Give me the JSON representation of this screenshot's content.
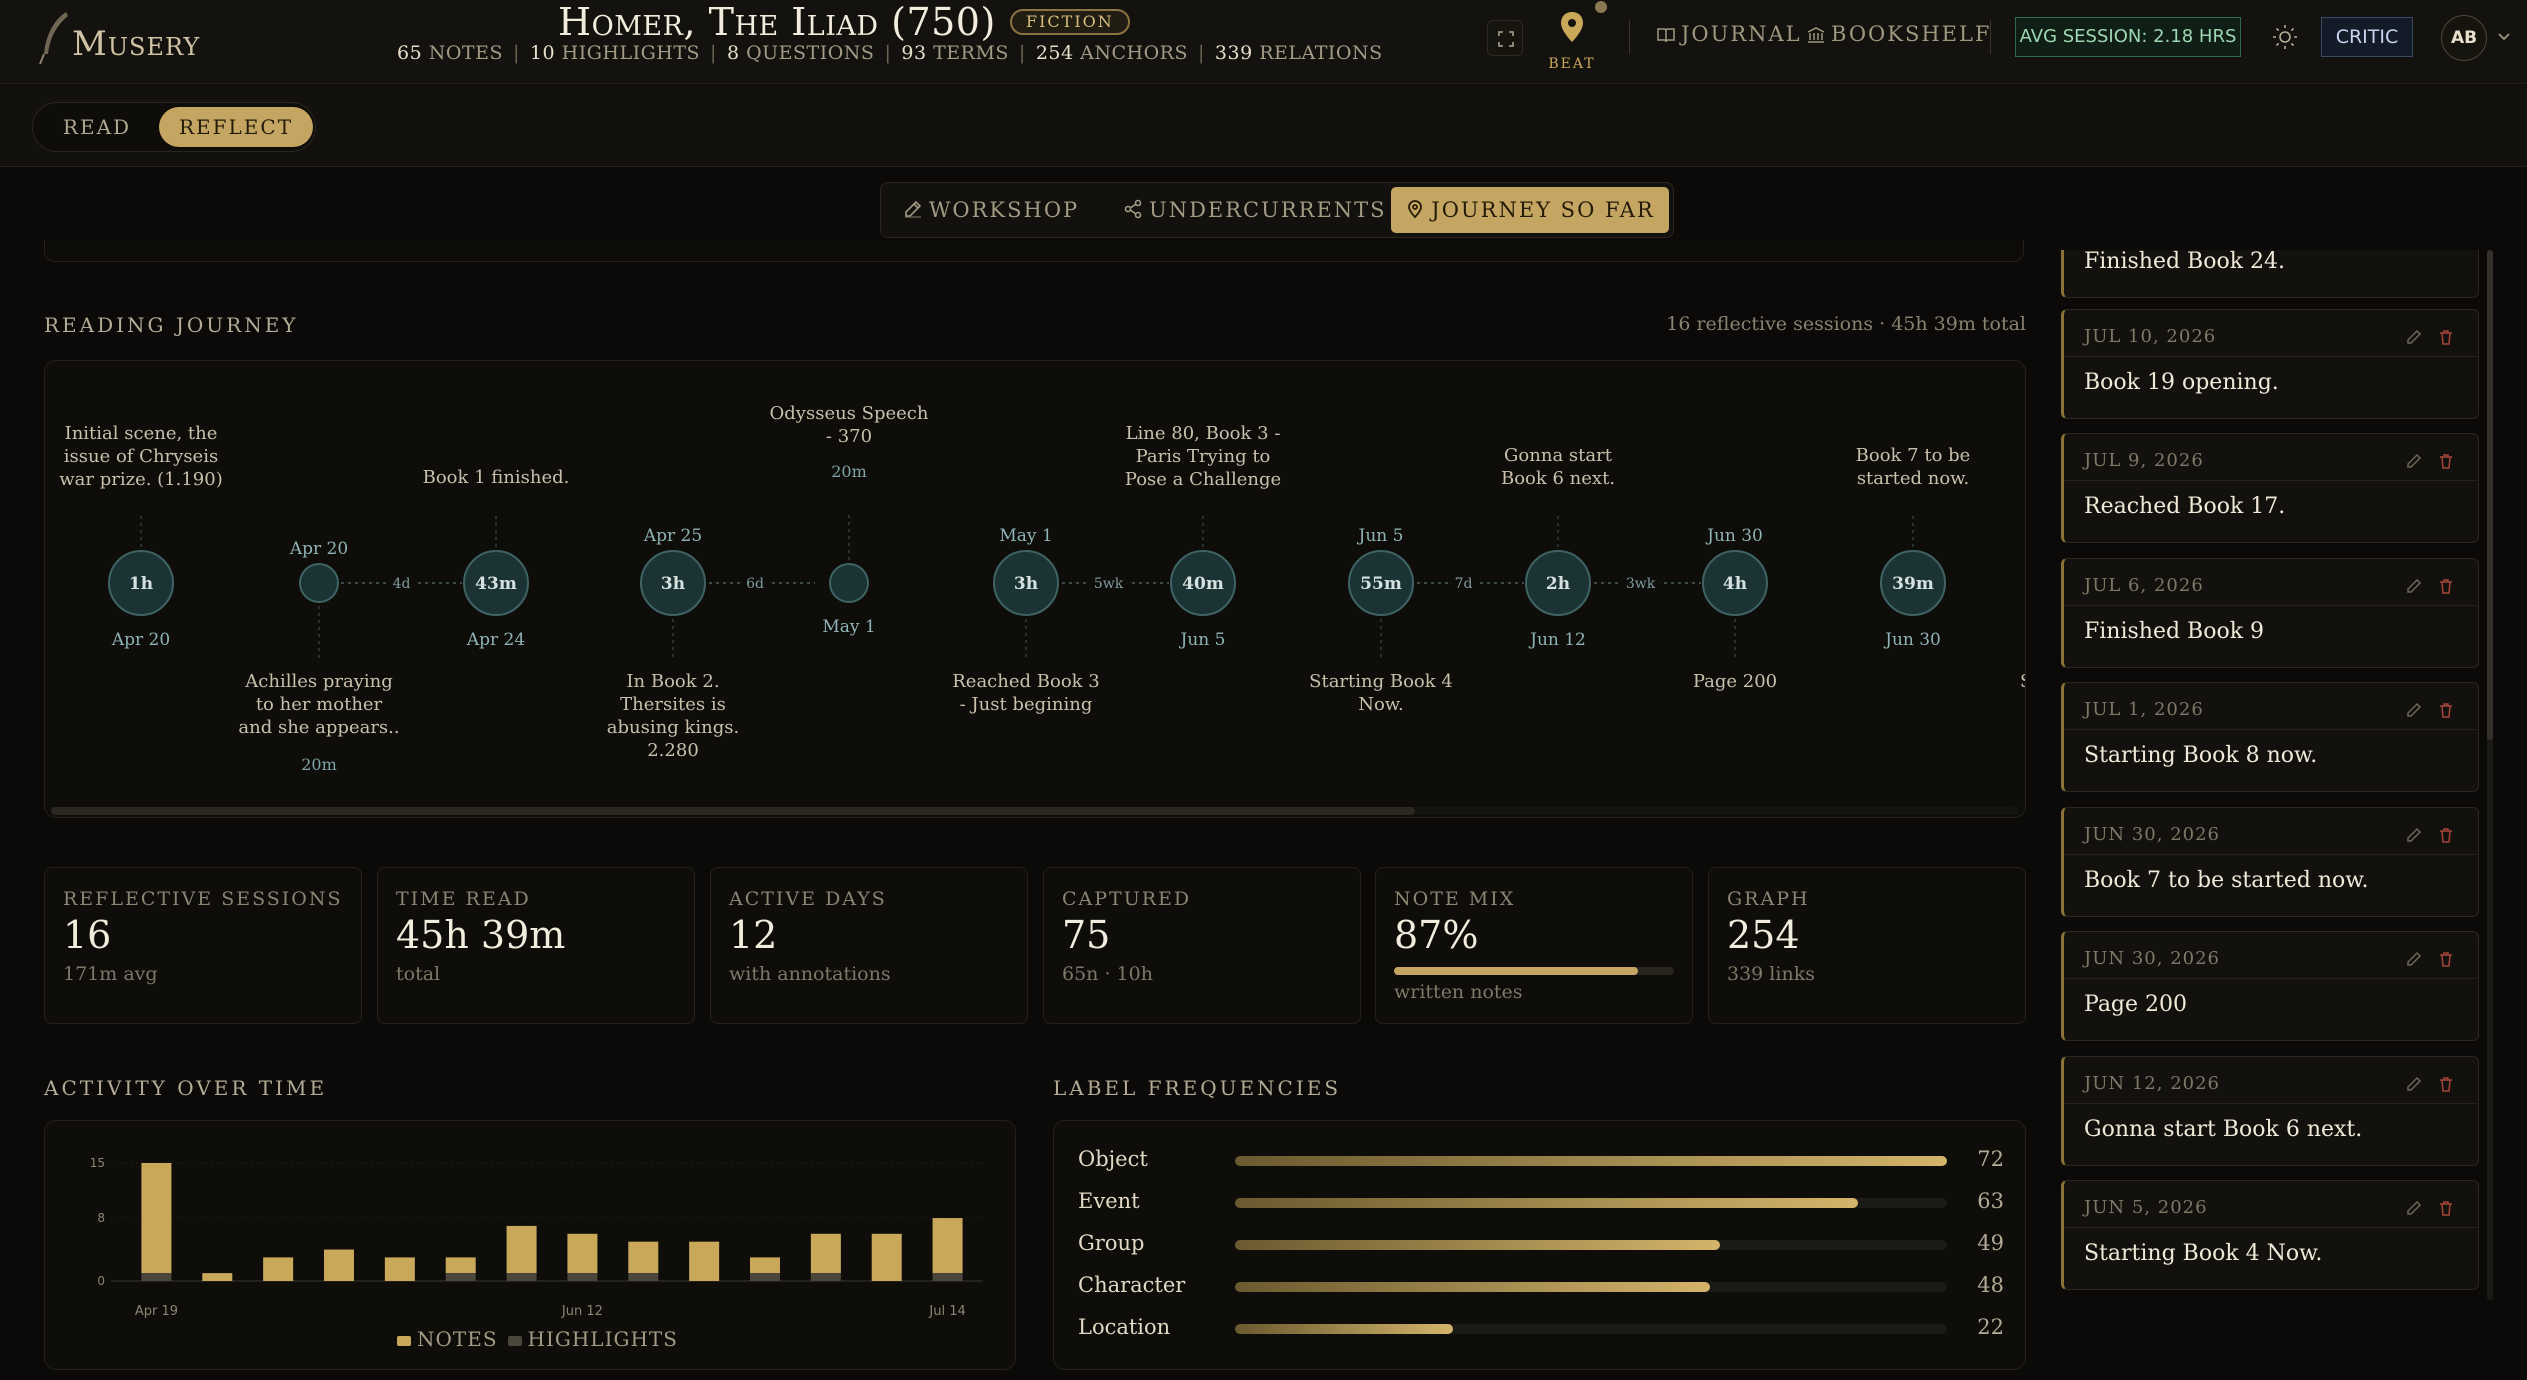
{
  "app": {
    "logo_text": "Musery"
  },
  "book": {
    "title": "Homer, The Iliad (750)",
    "genre": "FICTION",
    "stats": [
      {
        "count": "65",
        "label": "NOTES"
      },
      {
        "count": "10",
        "label": "HIGHLIGHTS"
      },
      {
        "count": "8",
        "label": "QUESTIONS"
      },
      {
        "count": "93",
        "label": "TERMS"
      },
      {
        "count": "254",
        "label": "ANCHORS"
      },
      {
        "count": "339",
        "label": "RELATIONS"
      }
    ]
  },
  "header": {
    "beat_label": "BEAT",
    "journal_label": "JOURNAL",
    "bookshelf_label": "BOOKSHELF",
    "avg_session": "AVG SESSION: 2.18 HRS",
    "critic_label": "CRITIC",
    "avatar_initials": "AB"
  },
  "mode": {
    "read": "READ",
    "reflect": "REFLECT",
    "active": "reflect"
  },
  "tabs": [
    {
      "label": "WORKSHOP",
      "icon": "pencil-icon"
    },
    {
      "label": "UNDERCURRENTS",
      "icon": "share-nodes-icon"
    },
    {
      "label": "JOURNEY SO FAR",
      "icon": "map-pin-icon",
      "active": true
    }
  ],
  "journey": {
    "title": "READING JOURNEY",
    "summary": "16 reflective sessions · 45h 39m total",
    "sessions": [
      {
        "duration": "1h",
        "date": "Apr 20",
        "note": [
          "Initial scene, the",
          "issue of Chryseis",
          "war prize. (1.190)"
        ],
        "note_pos": "above",
        "size": "large"
      },
      {
        "duration": "",
        "date": "Apr 20",
        "note": [
          "Achilles praying",
          "to her mother",
          "and she appears.."
        ],
        "note_pos": "below",
        "note_duration": "20m",
        "size": "small"
      },
      {
        "duration": "43m",
        "date": "Apr 24",
        "note": [
          "Book 1 finished."
        ],
        "note_pos": "above",
        "size": "large"
      },
      {
        "duration": "3h",
        "date": "Apr 25",
        "note": [
          "In Book 2.",
          "Thersites is",
          "abusing kings.",
          "2.280"
        ],
        "note_pos": "below",
        "size": "large"
      },
      {
        "duration": "",
        "date": "May 1",
        "note": [
          "Odysseus Speech",
          "- 370"
        ],
        "note_pos": "above",
        "note_duration": "20m",
        "size": "small"
      },
      {
        "duration": "3h",
        "date": "May 1",
        "note": [
          "Reached Book 3",
          "- Just begining"
        ],
        "note_pos": "below",
        "size": "large"
      },
      {
        "duration": "40m",
        "date": "Jun 5",
        "note": [
          "Line 80, Book 3 -",
          "Paris Trying to",
          "Pose a Challenge"
        ],
        "note_pos": "above",
        "size": "large"
      },
      {
        "duration": "55m",
        "date": "Jun 5",
        "note": [
          "Starting Book 4",
          "Now."
        ],
        "note_pos": "below",
        "size": "large"
      },
      {
        "duration": "2h",
        "date": "Jun 12",
        "note": [
          "Gonna start",
          "Book 6 next."
        ],
        "note_pos": "above",
        "size": "large"
      },
      {
        "duration": "4h",
        "date": "Jun 30",
        "note": [
          "Page 200"
        ],
        "note_pos": "below",
        "size": "large"
      },
      {
        "duration": "39m",
        "date": "Jun 30",
        "note": [
          "Book 7 to be",
          "started now."
        ],
        "note_pos": "above",
        "size": "large"
      }
    ],
    "gaps": [
      {
        "after": 1,
        "label": "4d"
      },
      {
        "after": 3,
        "label": "6d"
      },
      {
        "after": 5,
        "label": "5wk"
      },
      {
        "after": 7,
        "label": "7d"
      },
      {
        "after": 8,
        "label": "3wk"
      }
    ],
    "clipped_note": "S"
  },
  "stats_cards": [
    {
      "label": "REFLECTIVE SESSIONS",
      "value": "16",
      "sub": "171m avg"
    },
    {
      "label": "TIME READ",
      "value": "45h 39m",
      "sub": "total"
    },
    {
      "label": "ACTIVE DAYS",
      "value": "12",
      "sub": "with annotations"
    },
    {
      "label": "CAPTURED",
      "value": "75",
      "sub": "65n · 10h"
    },
    {
      "label": "NOTE MIX",
      "value": "87%",
      "sub": "written notes",
      "fraction": 0.87
    },
    {
      "label": "GRAPH",
      "value": "254",
      "sub": "339 links"
    }
  ],
  "activity": {
    "title": "ACTIVITY OVER TIME",
    "legend": [
      "NOTES",
      "HIGHLIGHTS"
    ]
  },
  "chart_data": {
    "type": "bar",
    "stacked": true,
    "x_tick_labels": [
      "Apr 19",
      "Jun 12",
      "Jul 14"
    ],
    "y_ticks": [
      0,
      8,
      15
    ],
    "ylim": [
      0,
      15
    ],
    "series": [
      {
        "name": "NOTES",
        "color": "#c9a85a",
        "values": [
          14,
          1,
          3,
          4,
          3,
          2,
          6,
          5,
          4,
          5,
          2,
          5,
          6,
          7
        ]
      },
      {
        "name": "HIGHLIGHTS",
        "color": "#4a463c",
        "values": [
          1,
          0,
          0,
          0,
          0,
          1,
          1,
          1,
          1,
          0,
          1,
          1,
          0,
          1
        ]
      }
    ],
    "grid": true
  },
  "labels": {
    "title": "LABEL FREQUENCIES",
    "items": [
      {
        "name": "Object",
        "count": 72
      },
      {
        "name": "Event",
        "count": 63
      },
      {
        "name": "Group",
        "count": 49
      },
      {
        "name": "Character",
        "count": 48
      },
      {
        "name": "Location",
        "count": 22
      }
    ]
  },
  "journal_entries": [
    {
      "date": "",
      "text": "Finished Book 24."
    },
    {
      "date": "JUL 10, 2026",
      "text": "Book 19 opening."
    },
    {
      "date": "JUL 9, 2026",
      "text": "Reached Book 17."
    },
    {
      "date": "JUL 6, 2026",
      "text": "Finished Book 9"
    },
    {
      "date": "JUL 1, 2026",
      "text": "Starting Book 8 now."
    },
    {
      "date": "JUN 30, 2026",
      "text": "Book 7 to be started now."
    },
    {
      "date": "JUN 30, 2026",
      "text": "Page 200"
    },
    {
      "date": "JUN 12, 2026",
      "text": "Gonna start Book 6 next."
    },
    {
      "date": "JUN 5, 2026",
      "text": "Starting Book 4 Now."
    }
  ],
  "colors": {
    "accent": "#c4a562",
    "background": "#0b0a08",
    "node_fill": "#1c3335",
    "node_stroke": "#3f6364",
    "date_text": "#8fb3b6"
  }
}
